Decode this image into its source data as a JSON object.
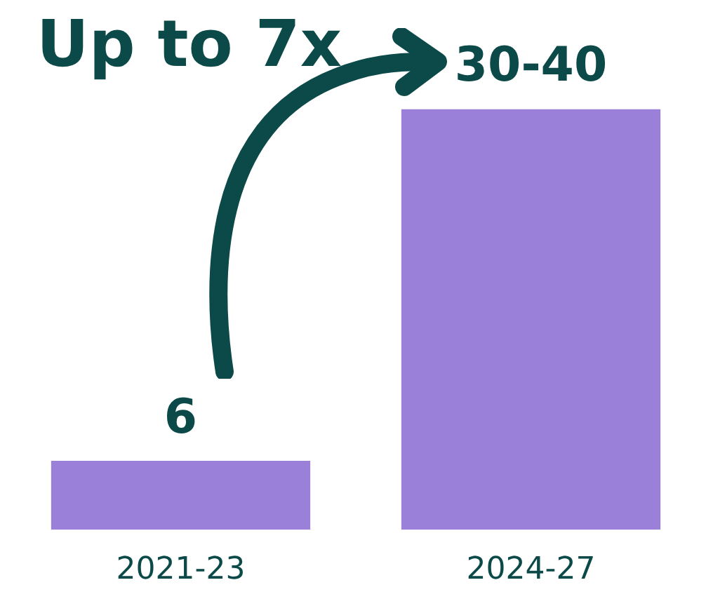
{
  "chart_data": {
    "type": "bar",
    "title": "Up to 7x",
    "categories": [
      "2021-23",
      "2024-27"
    ],
    "values": [
      6,
      36.6
    ],
    "color": "#9a80d8",
    "value_labels": [
      "6",
      "30-40"
    ]
  }
}
